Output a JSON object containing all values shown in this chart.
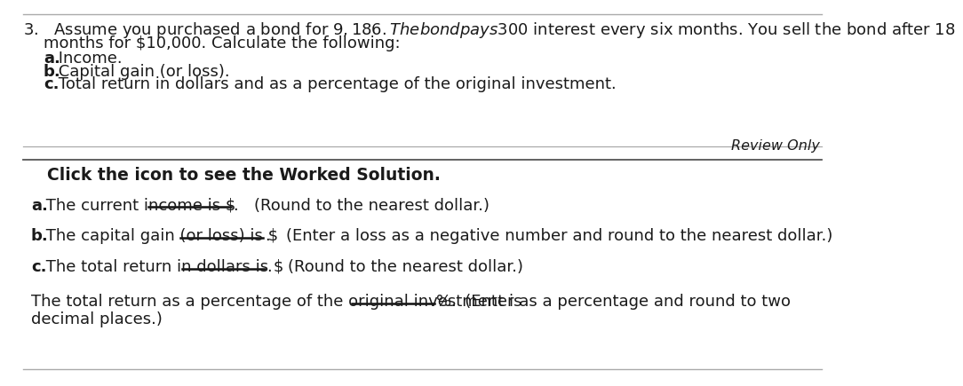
{
  "bg_color": "#ffffff",
  "font_color": "#1a1a1a",
  "line_color": "#aaaaaa",
  "line_color_dark": "#555555",
  "underline_color": "#111111",
  "font_size_main": 13.0,
  "font_size_review": 11.5,
  "question_number": "3.   Assume you purchased a bond for $9,186. The bond pays $300 interest every six months. You sell the bond after 18",
  "question_line2": "months for $10,000. Calculate the following:",
  "sub_a_bold": "a.",
  "sub_a_text": " Income.",
  "sub_b_bold": "b.",
  "sub_b_text": " Capital gain (or loss).",
  "sub_c_bold": "c.",
  "sub_c_text": " Total return in dollars and as a percentage of the original investment.",
  "review_only": "Review Only",
  "click_text": "Click the icon to see the Worked Solution.",
  "ans_a_bold": "a.",
  "ans_a_text": " The current income is $",
  "ans_a_suffix": ".   (Round to the nearest dollar.)",
  "ans_b_bold": "b.",
  "ans_b_text": " The capital gain (or loss) is $",
  "ans_b_suffix": ".   (Enter a loss as a negative number and round to the nearest dollar.)",
  "ans_c_bold": "c.",
  "ans_c_text": " The total return in dollars is $",
  "ans_c_suffix": ".   (Round to the nearest dollar.)",
  "ans_d_text1": "The total return as a percentage of the original investment is ",
  "ans_d_pct": "%.",
  "ans_d_text2": "   (Enter as a percentage and round to two",
  "ans_d_line2": "decimal places.)"
}
